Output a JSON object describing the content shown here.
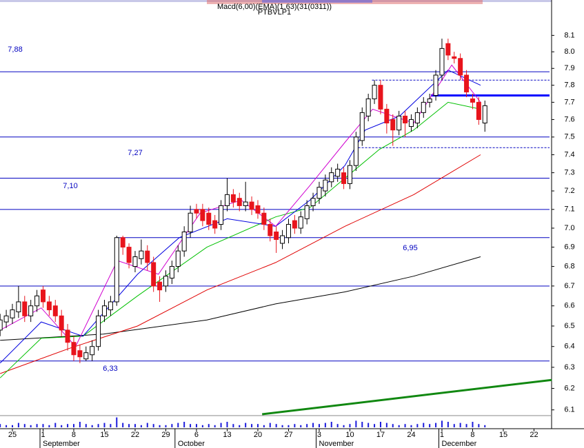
{
  "chart_data": {
    "type": "candlestick",
    "title": "Macd(6,00)(EMA)(1,63)(31(0311))",
    "subtitle": "PTBVLP1",
    "log_scale": true,
    "ylim": [
      6.02,
      8.32
    ],
    "yticks": [
      {
        "value": 8.1,
        "label": "8.1"
      },
      {
        "value": 8,
        "label": "8.0"
      },
      7.9,
      7.8,
      7.7,
      7.6,
      7.5,
      7.4,
      7.3,
      7.2,
      7.1,
      {
        "value": 7,
        "label": "7.0"
      },
      6.9,
      6.8,
      6.7,
      6.6,
      6.5,
      6.4,
      6.3,
      6.2,
      6.1
    ],
    "xlim": [
      -2.02,
      87.87
    ],
    "xticks": [
      {
        "value": 0,
        "label": "25"
      },
      {
        "value": 5,
        "label": "1"
      },
      {
        "value": 10,
        "label": "8"
      },
      {
        "value": 15,
        "label": "15"
      },
      {
        "value": 20,
        "label": "22"
      },
      {
        "value": 25,
        "label": "29"
      },
      {
        "value": 30,
        "label": "6"
      },
      {
        "value": 35,
        "label": "13"
      },
      {
        "value": 40,
        "label": "20"
      },
      {
        "value": 45,
        "label": "27"
      },
      {
        "value": 50,
        "label": "3"
      },
      {
        "value": 55,
        "label": "10"
      },
      {
        "value": 60,
        "label": "17"
      },
      {
        "value": 65,
        "label": "24"
      },
      {
        "value": 70,
        "label": "1"
      },
      {
        "value": 75,
        "label": "8"
      },
      {
        "value": 80,
        "label": "15"
      },
      {
        "value": 85,
        "label": "22"
      }
    ],
    "month_ticks": [
      {
        "value": 5,
        "label": "September"
      },
      {
        "value": 27,
        "label": "October"
      },
      {
        "value": 50,
        "label": "November"
      },
      {
        "value": 70,
        "label": "December"
      }
    ],
    "x": [
      -2,
      -1,
      0,
      1,
      2,
      3,
      4,
      5,
      6,
      7,
      8,
      9,
      10,
      11,
      12,
      13,
      14,
      15,
      16,
      17,
      18,
      19,
      20,
      21,
      22,
      23,
      24,
      25,
      26,
      27,
      28,
      29,
      30,
      31,
      32,
      33,
      34,
      35,
      36,
      37,
      38,
      39,
      40,
      41,
      42,
      43,
      44,
      45,
      46,
      47,
      48,
      49,
      50,
      51,
      52,
      53,
      54,
      55,
      56,
      57,
      58,
      59,
      60,
      61,
      62,
      63,
      64,
      65,
      66,
      67,
      68,
      69,
      70,
      71,
      72,
      73,
      74,
      75,
      76,
      77
    ],
    "open": [
      6.48,
      6.52,
      6.54,
      6.57,
      6.62,
      6.55,
      6.6,
      6.68,
      6.62,
      6.6,
      6.55,
      6.48,
      6.42,
      6.38,
      6.34,
      6.36,
      6.4,
      6.55,
      6.58,
      6.62,
      6.95,
      6.9,
      6.8,
      6.84,
      6.88,
      6.82,
      6.72,
      6.7,
      6.74,
      6.8,
      6.88,
      6.98,
      7.1,
      7.1,
      7.08,
      7.04,
      7.02,
      7.12,
      7.18,
      7.16,
      7.12,
      7.14,
      7.12,
      7.08,
      7.02,
      6.98,
      6.92,
      6.95,
      7.04,
      7.0,
      7.05,
      7.12,
      7.16,
      7.2,
      7.25,
      7.28,
      7.3,
      7.24,
      7.34,
      7.48,
      7.62,
      7.72,
      7.8,
      7.66,
      7.6,
      7.54,
      7.62,
      7.56,
      7.58,
      7.64,
      7.7,
      7.74,
      7.86,
      8.05,
      7.97,
      7.96,
      7.86,
      7.72,
      7.7,
      7.58
    ],
    "high": [
      6.56,
      6.58,
      6.61,
      6.7,
      6.65,
      6.63,
      6.68,
      6.7,
      6.65,
      6.63,
      6.58,
      6.51,
      6.45,
      6.41,
      6.4,
      6.43,
      6.58,
      6.63,
      6.65,
      6.96,
      6.96,
      6.92,
      6.88,
      6.94,
      6.91,
      6.85,
      6.75,
      6.78,
      6.83,
      6.91,
      7.01,
      7.12,
      7.13,
      7.13,
      7.11,
      7.07,
      7.15,
      7.27,
      7.21,
      7.19,
      7.25,
      7.17,
      7.15,
      7.11,
      7.05,
      7.01,
      6.99,
      7.05,
      7.07,
      7.09,
      7.15,
      7.19,
      7.25,
      7.29,
      7.33,
      7.35,
      7.33,
      7.37,
      7.53,
      7.67,
      7.75,
      7.83,
      7.83,
      7.69,
      7.63,
      7.65,
      7.65,
      7.63,
      7.67,
      7.73,
      7.75,
      7.89,
      8.08,
      8.08,
      8.0,
      7.99,
      7.89,
      7.75,
      7.73,
      7.71
    ],
    "low": [
      6.45,
      6.49,
      6.51,
      6.54,
      6.52,
      6.52,
      6.57,
      6.59,
      6.55,
      6.52,
      6.45,
      6.38,
      6.33,
      6.32,
      6.33,
      6.33,
      6.38,
      6.52,
      6.55,
      6.6,
      6.86,
      6.79,
      6.77,
      6.81,
      6.78,
      6.67,
      6.62,
      6.67,
      6.71,
      6.77,
      6.85,
      6.95,
      7.05,
      7.01,
      6.99,
      6.97,
      6.99,
      7.09,
      7.11,
      7.09,
      7.09,
      7.07,
      7.05,
      6.99,
      6.93,
      6.87,
      6.89,
      6.92,
      6.97,
      6.97,
      7.02,
      7.09,
      7.13,
      7.17,
      7.22,
      7.25,
      7.21,
      7.21,
      7.31,
      7.45,
      7.59,
      7.69,
      7.63,
      7.52,
      7.45,
      7.51,
      7.5,
      7.53,
      7.55,
      7.61,
      7.67,
      7.71,
      7.83,
      7.95,
      7.93,
      7.83,
      7.73,
      7.66,
      7.57,
      7.53
    ],
    "close": [
      6.53,
      6.55,
      6.58,
      6.62,
      6.55,
      6.6,
      6.65,
      6.62,
      6.58,
      6.55,
      6.48,
      6.42,
      6.36,
      6.35,
      6.37,
      6.4,
      6.55,
      6.6,
      6.62,
      6.95,
      6.9,
      6.82,
      6.85,
      6.88,
      6.82,
      6.7,
      6.68,
      6.75,
      6.8,
      6.88,
      6.98,
      7.08,
      7.08,
      7.04,
      7.02,
      7.0,
      7.12,
      7.18,
      7.14,
      7.12,
      7.14,
      7.1,
      7.08,
      7.02,
      6.96,
      6.94,
      6.96,
      7.02,
      7.0,
      7.06,
      7.12,
      7.16,
      7.22,
      7.26,
      7.3,
      7.32,
      7.24,
      7.34,
      7.5,
      7.64,
      7.72,
      7.8,
      7.66,
      7.58,
      7.54,
      7.62,
      7.58,
      7.6,
      7.64,
      7.7,
      7.72,
      7.86,
      8.02,
      7.98,
      7.96,
      7.86,
      7.76,
      7.7,
      7.6,
      7.68
    ],
    "up_color": "#ffffff",
    "down_color": "#e8141c",
    "volume_color": "#1a1adc",
    "volume_ylim": [
      0,
      10
    ],
    "volume": [
      3,
      2,
      2,
      4,
      3,
      2,
      3,
      3,
      2,
      4,
      2,
      3,
      3,
      5,
      3,
      2,
      3,
      4,
      3,
      9,
      4,
      3,
      3,
      2,
      4,
      3,
      2,
      2,
      3,
      4,
      5,
      3,
      3,
      2,
      3,
      2,
      4,
      5,
      3,
      2,
      4,
      3,
      3,
      2,
      4,
      3,
      2,
      2,
      3,
      2,
      3,
      4,
      3,
      4,
      5,
      3,
      2,
      3,
      6,
      5,
      4,
      3,
      5,
      4,
      3,
      2,
      3,
      2,
      3,
      4,
      3,
      4,
      6,
      5,
      3,
      4,
      3,
      5,
      3,
      2
    ],
    "levels": [
      {
        "value": 7.88,
        "label": "7,88",
        "color": "#0000c0",
        "style": "solid"
      },
      {
        "value": 7.5,
        "color": "#0000c0",
        "style": "solid"
      },
      {
        "value": 7.27,
        "label": "7,27",
        "color": "#0000c0",
        "style": "solid"
      },
      {
        "value": 7.1,
        "label": "7,10",
        "color": "#0000c0",
        "style": "solid"
      },
      {
        "value": 6.95,
        "label": "6,95",
        "color": "#0000c0",
        "style": "solid",
        "x_start": 17
      },
      {
        "value": 6.7,
        "color": "#0000c0",
        "style": "solid"
      },
      {
        "value": 6.33,
        "label": "6,33",
        "color": "#0000c0",
        "style": "solid"
      },
      {
        "value": 7.83,
        "color": "#0000c0",
        "style": "dashed",
        "x_start": 58.6
      },
      {
        "value": 7.44,
        "color": "#0000c0",
        "style": "dashed",
        "x_start": 55.8
      },
      {
        "value": 7.74,
        "color": "#0000ff",
        "style": "thick",
        "x_start": 68.2
      }
    ],
    "moving_averages": [
      {
        "color": "#000000",
        "x": [
          -2,
          14.8,
          31.7,
          42.9,
          54.2,
          65.4,
          76.3
        ],
        "values": [
          6.43,
          6.46,
          6.53,
          6.61,
          6.67,
          6.75,
          6.85
        ]
      },
      {
        "color": "#e00000",
        "x": [
          -2,
          9.2,
          20.4,
          31.7,
          42.9,
          54.2,
          65.4,
          76.3
        ],
        "values": [
          6.27,
          6.39,
          6.5,
          6.68,
          6.82,
          7.01,
          7.18,
          7.4
        ]
      },
      {
        "color": "#00c000",
        "x": [
          -2,
          4.7,
          11.5,
          20.4,
          31.7,
          42.9,
          48.5,
          54.2,
          59.8,
          65.4,
          71,
          76.3
        ],
        "values": [
          6.25,
          6.44,
          6.45,
          6.65,
          6.9,
          7.06,
          7.11,
          7.27,
          7.43,
          7.54,
          7.7,
          7.66
        ]
      },
      {
        "color": "#0000e0",
        "x": [
          -2,
          4.7,
          11.5,
          20.4,
          27.2,
          35,
          42.9,
          48.5,
          54.2,
          57.5,
          63.1,
          71,
          76.3
        ],
        "values": [
          6.32,
          6.52,
          6.45,
          6.76,
          6.95,
          7.05,
          7.01,
          7.15,
          7.34,
          7.54,
          7.62,
          7.89,
          7.8
        ]
      },
      {
        "color": "#d000d0",
        "x": [
          -2,
          4.7,
          10.3,
          17.1,
          23.8,
          30.6,
          37.3,
          42.9,
          48.5,
          54.2,
          58.7,
          65.4,
          71.6,
          76.3
        ],
        "values": [
          6.48,
          6.59,
          6.4,
          6.83,
          6.76,
          7.08,
          7.15,
          7.01,
          7.23,
          7.47,
          7.66,
          7.58,
          7.92,
          7.7
        ]
      }
    ],
    "trendline": {
      "color": "#118811",
      "x": [
        40.7,
        87.9
      ],
      "values": [
        6.08,
        6.24
      ]
    }
  }
}
